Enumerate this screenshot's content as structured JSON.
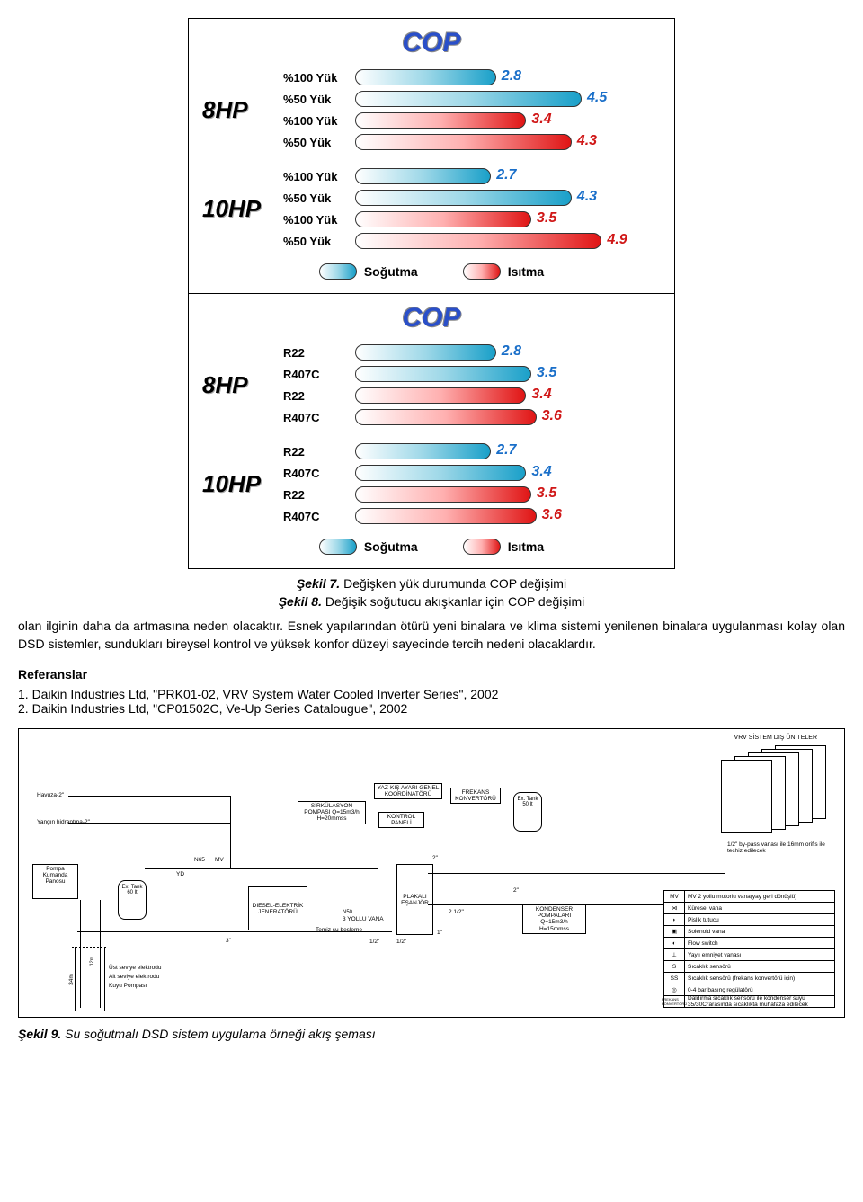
{
  "chart": {
    "title": "COP",
    "max_value": 5.0,
    "bar_track_width": 280,
    "colors": {
      "blue_start": "#ffffff",
      "blue_end": "#1aa0c9",
      "red_start": "#ffffff",
      "red_end": "#e01515",
      "value_blue": "#1a6fc9",
      "value_red": "#d01818",
      "title_blue": "#2a4fc9"
    },
    "panels": [
      {
        "title_visible": true,
        "groups": [
          {
            "hp": "8HP",
            "bars": [
              {
                "label": "%100 Yük",
                "value": 2.8,
                "color": "blue"
              },
              {
                "label": "%50 Yük",
                "value": 4.5,
                "color": "blue"
              },
              {
                "label": "%100 Yük",
                "value": 3.4,
                "color": "red"
              },
              {
                "label": "%50 Yük",
                "value": 4.3,
                "color": "red"
              }
            ]
          },
          {
            "hp": "10HP",
            "bars": [
              {
                "label": "%100 Yük",
                "value": 2.7,
                "color": "blue"
              },
              {
                "label": "%50 Yük",
                "value": 4.3,
                "color": "blue"
              },
              {
                "label": "%100 Yük",
                "value": 3.5,
                "color": "red"
              },
              {
                "label": "%50 Yük",
                "value": 4.9,
                "color": "red"
              }
            ]
          }
        ],
        "legend": [
          {
            "color": "blue",
            "label": "Soğutma"
          },
          {
            "color": "red",
            "label": "Isıtma"
          }
        ]
      },
      {
        "title_visible": true,
        "groups": [
          {
            "hp": "8HP",
            "bars": [
              {
                "label": "R22",
                "value": 2.8,
                "color": "blue"
              },
              {
                "label": "R407C",
                "value": 3.5,
                "color": "blue"
              },
              {
                "label": "R22",
                "value": 3.4,
                "color": "red"
              },
              {
                "label": "R407C",
                "value": 3.6,
                "color": "red"
              }
            ]
          },
          {
            "hp": "10HP",
            "bars": [
              {
                "label": "R22",
                "value": 2.7,
                "color": "blue"
              },
              {
                "label": "R407C",
                "value": 3.4,
                "color": "blue"
              },
              {
                "label": "R22",
                "value": 3.5,
                "color": "red"
              },
              {
                "label": "R407C",
                "value": 3.6,
                "color": "red"
              }
            ]
          }
        ],
        "legend": [
          {
            "color": "blue",
            "label": "Soğutma"
          },
          {
            "color": "red",
            "label": "Isıtma"
          }
        ]
      }
    ]
  },
  "captions": {
    "fig7": {
      "label": "Şekil 7.",
      "text": "Değişken yük durumunda COP değişimi"
    },
    "fig8": {
      "label": "Şekil 8.",
      "text": "Değişik soğutucu akışkanlar için COP değişimi"
    },
    "fig9": {
      "label": "Şekil 9.",
      "text": "Su soğutmalı DSD sistem uygulama örneği akış şeması"
    }
  },
  "body": {
    "para": "olan ilginin daha da artmasına neden olacaktır. Esnek yapılarından ötürü yeni binalara ve klima sistemi yenilenen binalara uygulanması kolay olan DSD sistemler, sundukları bireysel kontrol ve yüksek konfor düzeyi sayecinde tercih nedeni olacaklardır."
  },
  "refs": {
    "title": "Referanslar",
    "items": [
      "1. Daikin Industries Ltd, \"PRK01-02, VRV System Water Cooled Inverter Series\", 2002",
      "2. Daikin Industries Ltd, \"CP01502C, Ve-Up Series Catalougue\", 2002"
    ]
  },
  "diagram": {
    "header_text": "VRV SİSTEM DIŞ ÜNİTELER",
    "yaz_kis": "YAZ-KIŞ AYARI GENEL KOORDİNATÖRÜ",
    "frekans": "FREKANS KONVERTÖRÜ",
    "kontrol": "KONTROL PANELİ",
    "sirkulasyon": "SİRKÜLASYON POMPASI Q=15m3/h H=20mmss",
    "dizel": "DIESEL-ELEKTRİK JENERATÖRÜ",
    "plakali": "PLAKALI EŞANJÖR",
    "yollu3": "3 YOLLU VANA",
    "kondenser": "KONDENSER POMPALARI Q=15m3/h H=15mmss",
    "pompa_panosu": "Pompa Kumanda Panosu",
    "ex_tank1": "Ex. Tank 60 lt",
    "ex_tank2": "Ex. Tank 50 lt",
    "havuz": "Havuza-2\"",
    "yangin": "Yangın hidrantına-2\"",
    "temiz_su": "Temiz su besleme",
    "bypass": "1/2\" by-pass vanası ile 16mm orifis ile techiz edilecek",
    "sizes": {
      "half": "1/2\"",
      "one": "1\"",
      "two": "2\"",
      "two_half": "2 1/2\"",
      "three": "3\"",
      "n65": "N65",
      "mv": "MV"
    },
    "well": {
      "ust": "Üst seviye elektrodu",
      "alt": "Alt seviye elektrodu",
      "kuyu": "Kuyu Pompası",
      "depth": "34m",
      "d12": "12m"
    },
    "legend": [
      {
        "sym": "MV",
        "desc": "MV 2 yollu motorlu vana(yay geri dönüşlü)"
      },
      {
        "sym": "⋈",
        "desc": "Küresel vana"
      },
      {
        "sym": "◗",
        "desc": "Pislik tutucu"
      },
      {
        "sym": "▣",
        "desc": "Solenoid vana"
      },
      {
        "sym": "◐",
        "desc": "Flow switch"
      },
      {
        "sym": "⊥",
        "desc": "Yaylı emniyet vanası"
      },
      {
        "sym": "S",
        "desc": "Sıcaklık sensörü"
      },
      {
        "sym": "SS",
        "desc": "Sıcaklık sensörü (frekans konvertörü için)"
      },
      {
        "sym": "◎",
        "desc": "0-4 bar basınç regülatörü"
      },
      {
        "sym": "FREKANS KONVERTÖRÜ",
        "desc": "Daldırma sıcaklık sensörü ile kondenser suyu 35/30C°arasında sıcaklıkta muhafaza edilecek"
      }
    ]
  }
}
